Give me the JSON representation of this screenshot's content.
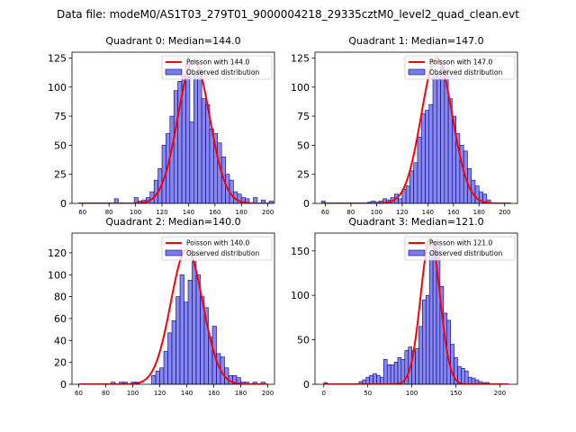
{
  "suptitle": "Data file: modeM0/AS1T03_279T01_9000004218_29335cztM0_level2_quad_clean.evt",
  "colors": {
    "hist_fill": "#7b7bea",
    "hist_edge": "#00008b",
    "poisson": "#ff0000",
    "legend_edge": "#cccccc"
  },
  "chart_data": [
    {
      "type": "bar",
      "title": "Quadrant 0: Median=144.0",
      "median": 144.0,
      "xlim": [
        52,
        205
      ],
      "ylim": [
        0,
        130
      ],
      "xticks": [
        60,
        80,
        100,
        120,
        140,
        160,
        180,
        200
      ],
      "yticks": [
        0,
        25,
        50,
        75,
        100,
        125
      ],
      "legend": [
        "Poisson with 144.0",
        "Observed distribution"
      ],
      "bin_width": 3,
      "bin_start": 84,
      "counts": [
        4,
        0,
        0,
        0,
        0,
        5,
        2,
        3,
        5,
        10,
        20,
        30,
        50,
        60,
        75,
        97,
        105,
        110,
        120,
        70,
        110,
        115,
        90,
        85,
        64,
        60,
        52,
        40,
        25,
        20,
        10,
        8,
        5,
        4,
        0,
        5,
        0,
        3,
        0,
        2
      ],
      "poisson": {
        "mu": 144,
        "peak": 123,
        "x_from": 57,
        "x_to": 202
      }
    },
    {
      "type": "bar",
      "title": "Quadrant 1: Median=147.0",
      "median": 147.0,
      "xlim": [
        52,
        210
      ],
      "ylim": [
        0,
        130
      ],
      "xticks": [
        60,
        80,
        100,
        120,
        140,
        160,
        180,
        200
      ],
      "yticks": [
        0,
        25,
        50,
        75,
        100,
        125
      ],
      "legend": [
        "Poisson with 147.0",
        "Observed distribution"
      ],
      "bin_width": 3,
      "bin_start": 57,
      "counts": [
        2,
        0,
        0,
        0,
        0,
        0,
        0,
        0,
        0,
        0,
        0,
        0,
        1,
        2,
        1,
        2,
        4,
        3,
        5,
        8,
        4,
        12,
        15,
        28,
        35,
        57,
        77,
        80,
        85,
        110,
        112,
        120,
        115,
        90,
        75,
        60,
        50,
        45,
        30,
        20,
        15,
        10,
        8,
        3
      ],
      "poisson": {
        "mu": 147,
        "peak": 125,
        "x_from": 57,
        "x_to": 205
      }
    },
    {
      "type": "bar",
      "title": "Quadrant 2: Median=140.0",
      "median": 140.0,
      "xlim": [
        55,
        205
      ],
      "ylim": [
        0,
        138
      ],
      "xticks": [
        60,
        80,
        100,
        120,
        140,
        160,
        180,
        200
      ],
      "yticks": [
        0,
        20,
        40,
        60,
        80,
        100,
        120
      ],
      "legend": [
        "Poisson with 140.0",
        "Observed distribution"
      ],
      "bin_width": 3,
      "bin_start": 84,
      "counts": [
        2,
        0,
        2,
        2,
        0,
        2,
        2,
        0,
        0,
        0,
        8,
        12,
        15,
        30,
        47,
        58,
        80,
        100,
        75,
        95,
        112,
        100,
        80,
        70,
        43,
        53,
        28,
        25,
        15,
        8,
        8,
        6,
        2,
        2,
        0,
        2,
        0,
        2
      ],
      "poisson": {
        "mu": 140,
        "peak": 123,
        "x_from": 60,
        "x_to": 200
      }
    },
    {
      "type": "bar",
      "title": "Quadrant 3: Median=121.0",
      "median": 121.0,
      "xlim": [
        -10,
        220
      ],
      "ylim": [
        0,
        170
      ],
      "xticks": [
        0,
        50,
        100,
        150,
        200
      ],
      "yticks": [
        0,
        50,
        100,
        150
      ],
      "legend": [
        "Poisson with 121.0",
        "Observed distribution"
      ],
      "bin_width": 4,
      "bin_start": 0,
      "counts": [
        2,
        0,
        0,
        0,
        0,
        0,
        0,
        0,
        0,
        0,
        3,
        5,
        8,
        10,
        12,
        10,
        8,
        28,
        22,
        22,
        25,
        30,
        28,
        38,
        42,
        38,
        40,
        65,
        95,
        100,
        148,
        160,
        155,
        110,
        80,
        72,
        45,
        30,
        20,
        18,
        15,
        8,
        7,
        5,
        3,
        2,
        2
      ],
      "poisson": {
        "mu": 121,
        "peak": 164,
        "x_from": 0,
        "x_to": 210
      }
    }
  ]
}
